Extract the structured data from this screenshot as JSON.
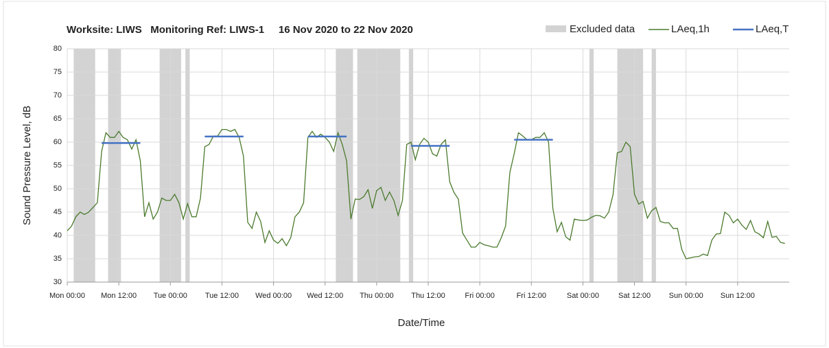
{
  "chart_data": {
    "type": "line",
    "title": "Worksite: LIWS   Monitoring Ref: LIWS-1     16 Nov 2020 to 22 Nov 2020",
    "x_label": "Date/Time",
    "y_label": "Sound Pressure Level, dB",
    "xlim": [
      0,
      168
    ],
    "ylim": [
      30,
      80
    ],
    "yticks": [
      30,
      35,
      40,
      45,
      50,
      55,
      60,
      65,
      70,
      75,
      80
    ],
    "xticks": [
      {
        "value": 0,
        "label": "Mon 00:00"
      },
      {
        "value": 12,
        "label": "Mon 12:00"
      },
      {
        "value": 24,
        "label": "Tue 00:00"
      },
      {
        "value": 36,
        "label": "Tue 12:00"
      },
      {
        "value": 48,
        "label": "Wed 00:00"
      },
      {
        "value": 60,
        "label": "Wed 12:00"
      },
      {
        "value": 72,
        "label": "Thu 00:00"
      },
      {
        "value": 84,
        "label": "Thu 12:00"
      },
      {
        "value": 96,
        "label": "Fri 00:00"
      },
      {
        "value": 108,
        "label": "Fri 12:00"
      },
      {
        "value": 120,
        "label": "Sat 00:00"
      },
      {
        "value": 132,
        "label": "Sat 12:00"
      },
      {
        "value": 144,
        "label": "Sun 00:00"
      },
      {
        "value": 156,
        "label": "Sun 12:00"
      }
    ],
    "grid": true,
    "excluded": {
      "name": "Excluded data",
      "color": "#d3d3d3",
      "ranges": [
        [
          1.5,
          6.5
        ],
        [
          9.5,
          12.5
        ],
        [
          21.5,
          26.5
        ],
        [
          27.5,
          28.5
        ],
        [
          62.5,
          66.5
        ],
        [
          67.5,
          77.5
        ],
        [
          79.5,
          80.5
        ],
        [
          121.5,
          122.5
        ],
        [
          128,
          134
        ],
        [
          136,
          137
        ]
      ]
    },
    "series": [
      {
        "name": "LAeq,1h",
        "color": "#4a7a2c",
        "x": [
          0,
          1,
          2,
          3,
          4,
          5,
          6,
          7,
          8,
          9,
          10,
          11,
          12,
          13,
          14,
          15,
          16,
          17,
          18,
          19,
          20,
          21,
          22,
          23,
          24,
          25,
          26,
          27,
          28,
          29,
          30,
          31,
          32,
          33,
          34,
          35,
          36,
          37,
          38,
          39,
          40,
          41,
          42,
          43,
          44,
          45,
          46,
          47,
          48,
          49,
          50,
          51,
          52,
          53,
          54,
          55,
          56,
          57,
          58,
          59,
          60,
          61,
          62,
          63,
          64,
          65,
          66,
          67,
          68,
          69,
          70,
          71,
          72,
          73,
          74,
          75,
          76,
          77,
          78,
          79,
          80,
          81,
          82,
          83,
          84,
          85,
          86,
          87,
          88,
          89,
          90,
          91,
          92,
          93,
          94,
          95,
          96,
          97,
          98,
          99,
          100,
          101,
          102,
          103,
          104,
          105,
          106,
          107,
          108,
          109,
          110,
          111,
          112,
          113,
          114,
          115,
          116,
          117,
          118,
          119,
          120,
          121,
          122,
          123,
          124,
          125,
          126,
          127,
          128,
          129,
          130,
          131,
          132,
          133,
          134,
          135,
          136,
          137,
          138,
          139,
          140,
          141,
          142,
          143,
          144,
          145,
          146,
          147,
          148,
          149,
          150,
          151,
          152,
          153,
          154,
          155,
          156,
          157,
          158,
          159,
          160,
          161,
          162,
          163,
          164,
          165,
          166,
          167
        ],
        "values": [
          41,
          42,
          44,
          45,
          44.5,
          45,
          46,
          47,
          58,
          62,
          61,
          61,
          62.3,
          61,
          60.5,
          58.5,
          60.5,
          56,
          44,
          47,
          43.5,
          45,
          48,
          47.5,
          47.5,
          48.8,
          47,
          43.5,
          46.8,
          44,
          44,
          48,
          59,
          59.5,
          61.3,
          61.3,
          62.7,
          62.7,
          62.3,
          62.7,
          61,
          57,
          42.8,
          41.5,
          45,
          43,
          38.5,
          41,
          39,
          38.3,
          39.3,
          37.8,
          39.5,
          44,
          45,
          47,
          61,
          62.3,
          61,
          61.7,
          61,
          60,
          58,
          62,
          59.5,
          56,
          43.5,
          47.8,
          47.7,
          48.3,
          49.8,
          45.8,
          49.6,
          50.3,
          47.5,
          49.3,
          47.5,
          44.3,
          47.5,
          59.5,
          60,
          56.2,
          59.5,
          60.8,
          60,
          57.5,
          57,
          59.5,
          60.5,
          51.5,
          49.2,
          47.8,
          40.5,
          39,
          37.5,
          37.5,
          38.5,
          38,
          37.8,
          37.5,
          37.5,
          39.5,
          42,
          53.5,
          57.5,
          62,
          61.3,
          60.5,
          60.5,
          61,
          61,
          62,
          60,
          45.8,
          40.8,
          42.8,
          39.7,
          39,
          43.5,
          43.3,
          43.2,
          43.3,
          43.9,
          44.3,
          44.2,
          43.7,
          45,
          48.7,
          57.7,
          58,
          60,
          59,
          48.8,
          46.7,
          47.3,
          43.7,
          45.3,
          46,
          43,
          42.7,
          42.7,
          41.5,
          41.5,
          37,
          35,
          35.2,
          35.4,
          35.5,
          36,
          35.7,
          39,
          40.3,
          40.4,
          45,
          44.3,
          42.7,
          43.5,
          42.2,
          41.3,
          43.2,
          40.8,
          40.3,
          39.5,
          43,
          39.6,
          39.8,
          38.5,
          38.3
        ]
      },
      {
        "name": "LAeq,T",
        "color": "#4472c4",
        "x_start": [
          8,
          32,
          56,
          80,
          104
        ],
        "x_end": [
          17,
          41,
          65,
          89,
          113
        ],
        "values": [
          59.8,
          61.2,
          61.2,
          59.2,
          60.5
        ]
      }
    ]
  }
}
